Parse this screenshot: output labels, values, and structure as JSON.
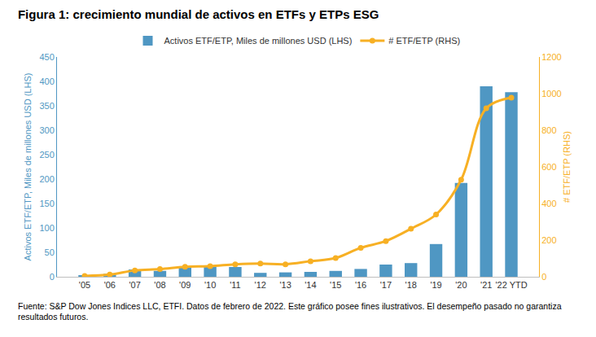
{
  "chart_data": {
    "type": "bar",
    "title": "Figura 1: crecimiento mundial de activos en ETFs y ETPs ESG",
    "categories": [
      "'05",
      "'06",
      "'07",
      "'08",
      "'09",
      "'10",
      "'11",
      "'12",
      "'13",
      "'14",
      "'15",
      "'16",
      "'17",
      "'18",
      "'19",
      "'20",
      "'21",
      "'22 YTD"
    ],
    "series": [
      {
        "name": "Activos ETF/ETP, Miles de millones USD (LHS)",
        "type": "bar",
        "color": "#4f97c3",
        "values": [
          2,
          6,
          15,
          12,
          20,
          22,
          20,
          8,
          9,
          10,
          12,
          16,
          25,
          28,
          67,
          192,
          390,
          378
        ]
      },
      {
        "name": "# ETF/ETP (RHS)",
        "type": "line",
        "axis": "y2",
        "color": "#f7b024",
        "marker": "circle",
        "line_style": "smooth",
        "values": [
          5,
          12,
          35,
          42,
          55,
          58,
          68,
          72,
          68,
          85,
          102,
          158,
          195,
          262,
          340,
          530,
          920,
          978
        ]
      }
    ],
    "y_label": "Activos ETF/ETP, Miles de millones USD (LHS)",
    "y2_label": "# ETF/ETP (RHS)",
    "ylim": [
      0,
      450
    ],
    "yticks": [
      0,
      50,
      100,
      150,
      200,
      250,
      300,
      350,
      400,
      450
    ],
    "y2lim": [
      0,
      1200
    ],
    "y2ticks": [
      0,
      200,
      400,
      600,
      800,
      1000,
      1200
    ],
    "grid": false,
    "legend": "top",
    "footnote": "Fuente: S&P Dow Jones Indices LLC, ETFI. Datos de febrero de 2022. Este gráfico posee fines ilustrativos. El desempeño pasado no garantiza resultados futuros."
  }
}
